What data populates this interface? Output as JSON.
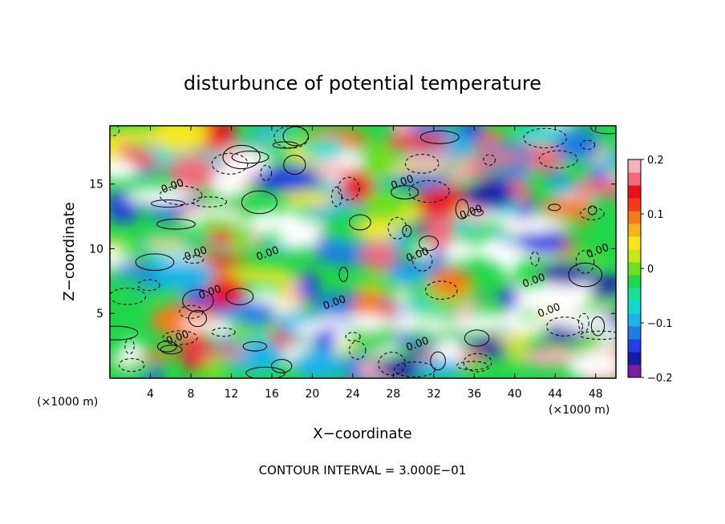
{
  "chart_data": {
    "type": "heatmap",
    "title": "disturbunce of potential temperature",
    "xlabel": "X−coordinate",
    "ylabel": "Z−coordinate",
    "x_unit_left": "(×1000 m)",
    "x_unit_right": "(×1000 m)",
    "footer": "CONTOUR INTERVAL = 3.000E−01",
    "xlim": [
      0,
      50
    ],
    "ylim": [
      0,
      19.5
    ],
    "xticks": [
      4,
      8,
      12,
      16,
      20,
      24,
      28,
      32,
      36,
      40,
      44,
      48
    ],
    "xtick_labels": [
      "4",
      "8",
      "12",
      "16",
      "20",
      "24",
      "28",
      "32",
      "36",
      "40",
      "44",
      "48"
    ],
    "yticks": [
      5,
      10,
      15
    ],
    "ytick_labels": [
      "5",
      "10",
      "15"
    ],
    "colorbar": {
      "min": -0.2,
      "max": 0.2,
      "ticks": [
        0.2,
        0.1,
        0,
        -0.1,
        -0.2
      ],
      "tick_labels": [
        "0.2",
        "0.1",
        "0",
        "−0.1",
        "−0.2"
      ],
      "colors": [
        "#7a1fa2",
        "#1a1aa8",
        "#1f3fe0",
        "#1e7de0",
        "#16b4e8",
        "#14d8d0",
        "#19e09a",
        "#22d64a",
        "#6ce020",
        "#c8e81a",
        "#f5e81a",
        "#f5b31a",
        "#f57a1a",
        "#f53a1a",
        "#e8101a",
        "#f06a7a",
        "#f8b0b8"
      ]
    },
    "contour_labels": [
      {
        "text": "0.00",
        "x": 6.3,
        "z": 14.6
      },
      {
        "text": "0.00",
        "x": 8.6,
        "z": 9.4
      },
      {
        "text": "0.00",
        "x": 15.7,
        "z": 9.4
      },
      {
        "text": "0.00",
        "x": 10.0,
        "z": 6.4
      },
      {
        "text": "0.00",
        "x": 6.8,
        "z": 2.9
      },
      {
        "text": "0.00",
        "x": 22.3,
        "z": 5.6
      },
      {
        "text": "0.00",
        "x": 29.0,
        "z": 14.9
      },
      {
        "text": "0.00",
        "x": 30.5,
        "z": 9.3
      },
      {
        "text": "0.00",
        "x": 35.8,
        "z": 12.6
      },
      {
        "text": "0.00",
        "x": 42.0,
        "z": 7.3
      },
      {
        "text": "0.00",
        "x": 48.3,
        "z": 9.6
      },
      {
        "text": "0.00",
        "x": 43.5,
        "z": 5.0
      },
      {
        "text": "0.00",
        "x": 30.5,
        "z": 2.4
      }
    ]
  }
}
